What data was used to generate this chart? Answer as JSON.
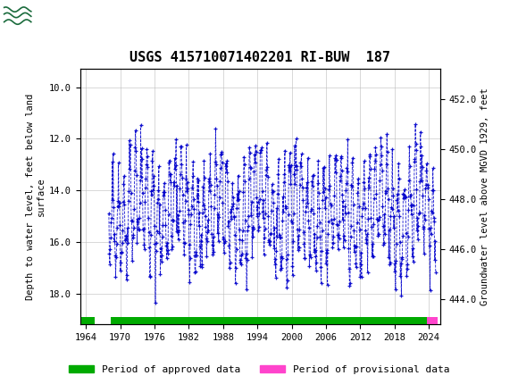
{
  "title": "USGS 415710071402201 RI-BUW  187",
  "ylabel_left": "Depth to water level, feet below land\nsurface",
  "ylabel_right": "Groundwater level above MGVD 1929, feet",
  "ylim_left": [
    19.2,
    9.3
  ],
  "ylim_right": [
    443.0,
    453.2
  ],
  "xlim": [
    1963,
    2026
  ],
  "xticks": [
    1964,
    1970,
    1976,
    1982,
    1988,
    1994,
    2000,
    2006,
    2012,
    2018,
    2024
  ],
  "yticks_left": [
    10.0,
    12.0,
    14.0,
    16.0,
    18.0
  ],
  "yticks_right": [
    444.0,
    446.0,
    448.0,
    450.0,
    452.0
  ],
  "data_color": "#0000cc",
  "header_bg": "#1a6b3c",
  "legend": [
    {
      "label": "Period of approved data",
      "color": "#00aa00"
    },
    {
      "label": "Period of provisional data",
      "color": "#ff44cc"
    }
  ],
  "approved_bar_xstart": 1968.3,
  "approved_bar_xend": 2023.7,
  "provisional_bar_xstart": 2023.7,
  "provisional_bar_xend": 2025.5,
  "small_approved_start": 1963.0,
  "small_approved_end": 1965.5,
  "bar_y": 19.05,
  "bar_height": 0.28,
  "t_start": 1968.0,
  "t_end": 2025.2
}
